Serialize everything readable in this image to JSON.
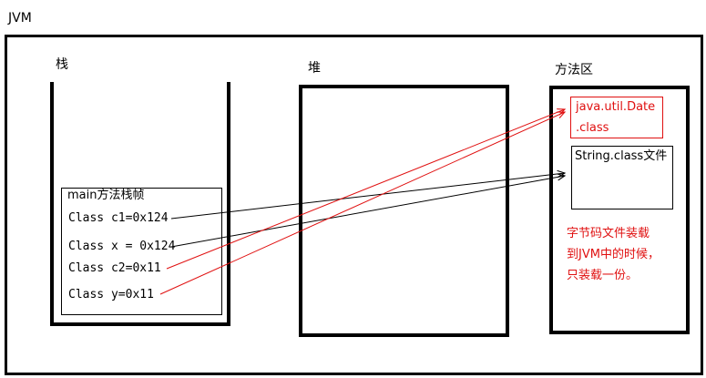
{
  "jvm": {
    "label": "JVM"
  },
  "stack": {
    "label": "栈",
    "frame": {
      "title": "main方法栈帧",
      "vars": [
        "Class c1=0x124",
        "Class x = 0x124",
        "Class c2=0x11",
        "Class y=0x11"
      ]
    }
  },
  "heap": {
    "label": "堆"
  },
  "method_area": {
    "label": "方法区",
    "date_class": {
      "line1": "java.util.Date",
      "line2": ".class"
    },
    "string_class": "String.class文件",
    "note": {
      "line1": "字节码文件装载",
      "line2": "到JVM中的时候，",
      "line3": "只装载一份。"
    }
  },
  "colors": {
    "black": "#000000",
    "red": "#e01010"
  }
}
